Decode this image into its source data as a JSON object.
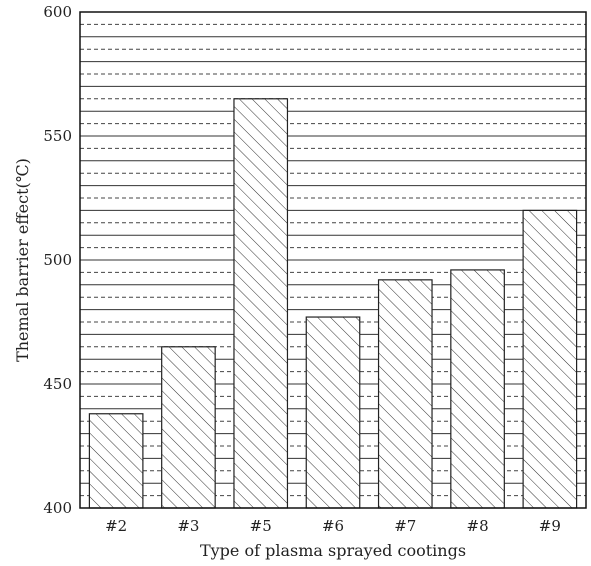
{
  "chart_data": {
    "type": "bar",
    "categories": [
      "#2",
      "#3",
      "#5",
      "#6",
      "#7",
      "#8",
      "#9"
    ],
    "values": [
      438,
      465,
      565,
      477,
      492,
      496,
      520
    ],
    "xlabel": "Type of plasma sprayed cootings",
    "ylabel": "Themal barrier effect(℃)",
    "ylim": [
      400,
      600
    ],
    "yticks": [
      "400",
      "450",
      "500",
      "550",
      "600"
    ],
    "grid": true,
    "major_grid_step": 10,
    "minor_grid_step": 5
  }
}
